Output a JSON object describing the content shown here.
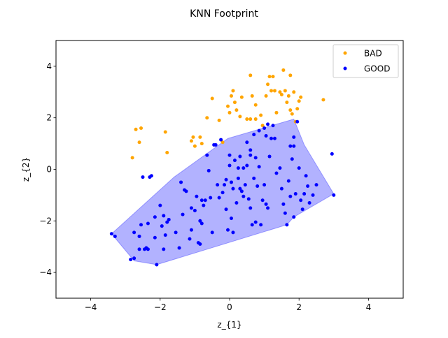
{
  "chart_data": {
    "type": "scatter",
    "title": "KNN Footprint",
    "xlabel": "z_{1}",
    "ylabel": "z_{2}",
    "xlim": [
      -5,
      5
    ],
    "ylim": [
      -5,
      5
    ],
    "xticks": [
      -4,
      -2,
      0,
      2,
      4
    ],
    "yticks": [
      -4,
      -2,
      0,
      2,
      4
    ],
    "xtick_labels": [
      "−4",
      "−2",
      "0",
      "2",
      "4"
    ],
    "ytick_labels": [
      "−4",
      "−2",
      "0",
      "2",
      "4"
    ],
    "grid": false,
    "legend_position": "top-right",
    "footprint_polygon": {
      "color": "#0000ff",
      "points": [
        [
          -3.4,
          -2.5
        ],
        [
          -2.75,
          -3.55
        ],
        [
          -2.1,
          -3.7
        ],
        [
          1.65,
          -2.15
        ],
        [
          1.85,
          -1.85
        ],
        [
          3.0,
          -0.95
        ],
        [
          2.15,
          0.95
        ],
        [
          1.85,
          1.95
        ],
        [
          -0.05,
          1.2
        ],
        [
          -1.6,
          -0.3
        ]
      ]
    },
    "series": [
      {
        "name": "BAD",
        "color": "#ffa500",
        "points": [
          [
            -2.8,
            0.45
          ],
          [
            -2.7,
            1.55
          ],
          [
            -2.55,
            1.6
          ],
          [
            -2.6,
            1.05
          ],
          [
            -1.85,
            1.45
          ],
          [
            -1.8,
            0.65
          ],
          [
            -1.1,
            1.1
          ],
          [
            -1.05,
            1.25
          ],
          [
            -1.0,
            0.9
          ],
          [
            -0.85,
            1.25
          ],
          [
            -0.8,
            1.0
          ],
          [
            -0.65,
            2.0
          ],
          [
            -0.5,
            2.75
          ],
          [
            -0.3,
            1.9
          ],
          [
            -0.2,
            1.05
          ],
          [
            -0.05,
            2.45
          ],
          [
            0.0,
            2.2
          ],
          [
            0.05,
            2.85
          ],
          [
            0.1,
            3.05
          ],
          [
            0.15,
            2.6
          ],
          [
            0.2,
            2.3
          ],
          [
            0.3,
            2.05
          ],
          [
            0.35,
            2.8
          ],
          [
            0.5,
            1.95
          ],
          [
            0.6,
            3.65
          ],
          [
            0.6,
            1.95
          ],
          [
            0.65,
            2.85
          ],
          [
            0.75,
            2.5
          ],
          [
            0.75,
            1.95
          ],
          [
            0.9,
            2.1
          ],
          [
            0.95,
            1.7
          ],
          [
            1.05,
            2.85
          ],
          [
            1.1,
            3.3
          ],
          [
            1.15,
            3.6
          ],
          [
            1.2,
            3.05
          ],
          [
            1.25,
            3.6
          ],
          [
            1.3,
            3.05
          ],
          [
            1.35,
            2.2
          ],
          [
            1.45,
            3.0
          ],
          [
            1.5,
            2.9
          ],
          [
            1.55,
            3.85
          ],
          [
            1.6,
            3.05
          ],
          [
            1.65,
            2.6
          ],
          [
            1.7,
            2.85
          ],
          [
            1.75,
            3.65
          ],
          [
            1.75,
            2.3
          ],
          [
            1.8,
            2.15
          ],
          [
            1.85,
            3.0
          ],
          [
            1.9,
            1.85
          ],
          [
            1.95,
            2.35
          ],
          [
            2.0,
            2.65
          ],
          [
            2.05,
            2.8
          ],
          [
            2.7,
            2.7
          ]
        ]
      },
      {
        "name": "GOOD",
        "color": "#0000ff",
        "points": [
          [
            -3.4,
            -2.5
          ],
          [
            -3.3,
            -2.6
          ],
          [
            -2.85,
            -3.5
          ],
          [
            -2.75,
            -3.45
          ],
          [
            -2.75,
            -2.45
          ],
          [
            -2.6,
            -3.1
          ],
          [
            -2.6,
            -2.6
          ],
          [
            -2.55,
            -2.15
          ],
          [
            -2.5,
            -0.3
          ],
          [
            -2.45,
            -3.1
          ],
          [
            -2.4,
            -3.05
          ],
          [
            -2.35,
            -3.1
          ],
          [
            -2.35,
            -2.1
          ],
          [
            -2.3,
            -0.3
          ],
          [
            -2.25,
            -0.25
          ],
          [
            -2.15,
            -2.65
          ],
          [
            -2.15,
            -1.85
          ],
          [
            -2.1,
            -3.7
          ],
          [
            -2.0,
            -1.4
          ],
          [
            -1.95,
            -2.2
          ],
          [
            -1.9,
            -3.1
          ],
          [
            -1.9,
            -1.8
          ],
          [
            -1.85,
            -2.55
          ],
          [
            -1.8,
            -2.05
          ],
          [
            -1.75,
            -1.95
          ],
          [
            -1.55,
            -2.45
          ],
          [
            -1.45,
            -3.05
          ],
          [
            -1.4,
            -0.5
          ],
          [
            -1.35,
            -1.75
          ],
          [
            -1.3,
            -0.8
          ],
          [
            -1.25,
            -0.85
          ],
          [
            -1.15,
            -2.7
          ],
          [
            -1.1,
            -2.35
          ],
          [
            -1.1,
            -1.5
          ],
          [
            -1.0,
            -1.6
          ],
          [
            -0.95,
            -1.05
          ],
          [
            -0.9,
            -2.85
          ],
          [
            -0.85,
            -2.9
          ],
          [
            -0.85,
            -2.0
          ],
          [
            -0.8,
            -1.2
          ],
          [
            -0.8,
            -2.1
          ],
          [
            -0.75,
            -1.4
          ],
          [
            -0.7,
            -1.2
          ],
          [
            -0.65,
            0.55
          ],
          [
            -0.6,
            -0.05
          ],
          [
            -0.55,
            -1.1
          ],
          [
            -0.5,
            -2.45
          ],
          [
            -0.45,
            0.95
          ],
          [
            -0.4,
            0.95
          ],
          [
            -0.35,
            -0.6
          ],
          [
            -0.3,
            -1.1
          ],
          [
            -0.25,
            1.15
          ],
          [
            -0.2,
            -0.9
          ],
          [
            -0.15,
            -0.6
          ],
          [
            -0.1,
            -0.4
          ],
          [
            -0.1,
            -1.55
          ],
          [
            -0.05,
            -2.35
          ],
          [
            0.0,
            0.55
          ],
          [
            0.0,
            0.15
          ],
          [
            0.05,
            -1.9
          ],
          [
            0.05,
            -0.5
          ],
          [
            0.1,
            -0.75
          ],
          [
            0.1,
            -2.45
          ],
          [
            0.15,
            0.35
          ],
          [
            0.2,
            -1.3
          ],
          [
            0.25,
            0.05
          ],
          [
            0.25,
            -0.35
          ],
          [
            0.3,
            0.5
          ],
          [
            0.3,
            -0.75
          ],
          [
            0.35,
            -0.85
          ],
          [
            0.4,
            0.05
          ],
          [
            0.4,
            -1.05
          ],
          [
            0.45,
            -0.6
          ],
          [
            0.5,
            1.05
          ],
          [
            0.5,
            0.15
          ],
          [
            0.55,
            -1.15
          ],
          [
            0.6,
            0.75
          ],
          [
            0.6,
            0.55
          ],
          [
            0.6,
            -1.5
          ],
          [
            0.65,
            -2.15
          ],
          [
            0.7,
            1.35
          ],
          [
            0.7,
            -0.35
          ],
          [
            0.75,
            0.45
          ],
          [
            0.75,
            -2.05
          ],
          [
            0.8,
            -0.65
          ],
          [
            0.85,
            1.5
          ],
          [
            0.85,
            0.1
          ],
          [
            0.9,
            -2.15
          ],
          [
            0.95,
            -1.2
          ],
          [
            1.0,
            1.6
          ],
          [
            1.0,
            -0.6
          ],
          [
            1.05,
            1.3
          ],
          [
            1.05,
            -1.35
          ],
          [
            1.1,
            1.75
          ],
          [
            1.1,
            -1.5
          ],
          [
            1.15,
            0.5
          ],
          [
            1.2,
            1.2
          ],
          [
            1.25,
            1.7
          ],
          [
            1.3,
            1.2
          ],
          [
            1.35,
            -0.15
          ],
          [
            1.45,
            0.05
          ],
          [
            1.5,
            -0.75
          ],
          [
            1.55,
            -1.35
          ],
          [
            1.6,
            -1.7
          ],
          [
            1.65,
            -2.15
          ],
          [
            1.7,
            -0.45
          ],
          [
            1.75,
            0.9
          ],
          [
            1.75,
            -1.05
          ],
          [
            1.8,
            0.4
          ],
          [
            1.85,
            1.25
          ],
          [
            1.85,
            0.9
          ],
          [
            1.85,
            -1.85
          ],
          [
            1.9,
            -0.95
          ],
          [
            1.95,
            1.85
          ],
          [
            2.0,
            0.05
          ],
          [
            2.05,
            -1.2
          ],
          [
            2.1,
            -1.55
          ],
          [
            2.15,
            -0.95
          ],
          [
            2.2,
            -0.25
          ],
          [
            2.25,
            -0.65
          ],
          [
            2.3,
            -1.3
          ],
          [
            2.4,
            -1.0
          ],
          [
            2.5,
            -0.6
          ],
          [
            2.95,
            0.6
          ],
          [
            3.0,
            -1.0
          ]
        ]
      }
    ]
  }
}
